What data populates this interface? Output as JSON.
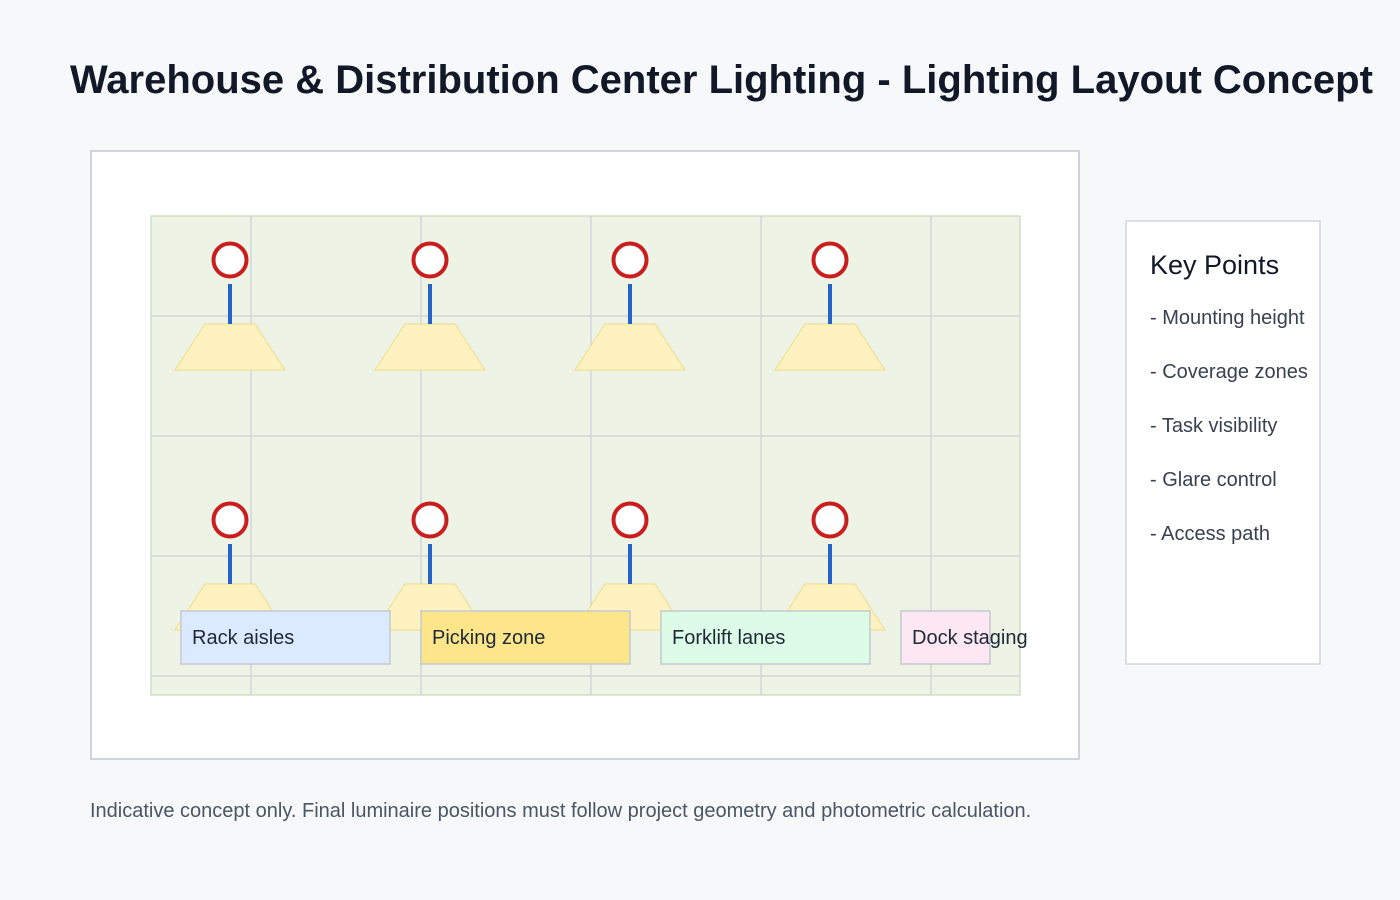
{
  "title": "Warehouse & Distribution Center Lighting - Lighting Layout Concept",
  "key_points": {
    "heading": "Key Points",
    "items": [
      "- Mounting height",
      "- Coverage zones",
      "- Task visibility",
      "- Glare control",
      "- Access path"
    ]
  },
  "zones": [
    {
      "label": "Rack aisles",
      "fill": "#dbeafe"
    },
    {
      "label": "Picking zone",
      "fill": "#fde68a"
    },
    {
      "label": "Forklift lanes",
      "fill": "#dcfce7"
    },
    {
      "label": "Dock staging",
      "fill": "#fce7f3"
    }
  ],
  "luminaires": {
    "rows": 2,
    "columns": 4,
    "marker_color": "#c81e1e",
    "drop_color": "#2563c9",
    "beam_color": "#fef3c0"
  },
  "colors": {
    "floor": "#edf4e6",
    "grid": "#d1d5db"
  },
  "footnote": "Indicative concept only. Final luminaire positions must follow project geometry and photometric calculation."
}
